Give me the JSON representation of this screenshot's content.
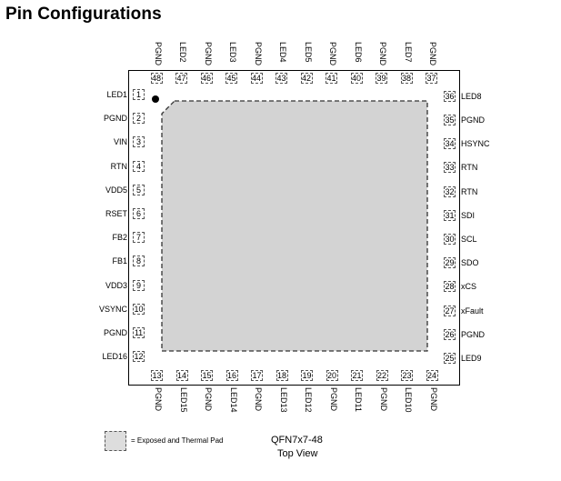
{
  "title": "Pin Configurations",
  "package": "QFN7x7-48",
  "view": "Top View",
  "legend": "= Exposed and Thermal Pad",
  "colors": {
    "pad_fill": "#d3d3d3",
    "outline": "#000000"
  },
  "pins_left": [
    {
      "num": "1",
      "name": "LED1"
    },
    {
      "num": "2",
      "name": "PGND"
    },
    {
      "num": "3",
      "name": "VIN"
    },
    {
      "num": "4",
      "name": "RTN"
    },
    {
      "num": "5",
      "name": "VDD5"
    },
    {
      "num": "6",
      "name": "RSET"
    },
    {
      "num": "7",
      "name": "FB2"
    },
    {
      "num": "8",
      "name": "FB1"
    },
    {
      "num": "9",
      "name": "VDD3"
    },
    {
      "num": "10",
      "name": "VSYNC"
    },
    {
      "num": "11",
      "name": "PGND"
    },
    {
      "num": "12",
      "name": "LED16"
    }
  ],
  "pins_bottom": [
    {
      "num": "13",
      "name": "PGND"
    },
    {
      "num": "14",
      "name": "LED15"
    },
    {
      "num": "15",
      "name": "PGND"
    },
    {
      "num": "16",
      "name": "LED14"
    },
    {
      "num": "17",
      "name": "PGND"
    },
    {
      "num": "18",
      "name": "LED13"
    },
    {
      "num": "19",
      "name": "LED12"
    },
    {
      "num": "20",
      "name": "PGND"
    },
    {
      "num": "21",
      "name": "LED11"
    },
    {
      "num": "22",
      "name": "PGND"
    },
    {
      "num": "23",
      "name": "LED10"
    },
    {
      "num": "24",
      "name": "PGND"
    }
  ],
  "pins_right": [
    {
      "num": "25",
      "name": "LED9"
    },
    {
      "num": "26",
      "name": "PGND"
    },
    {
      "num": "27",
      "name": "xFault"
    },
    {
      "num": "28",
      "name": "xCS"
    },
    {
      "num": "29",
      "name": "SDO"
    },
    {
      "num": "30",
      "name": "SCL"
    },
    {
      "num": "31",
      "name": "SDI"
    },
    {
      "num": "32",
      "name": "RTN"
    },
    {
      "num": "33",
      "name": "RTN"
    },
    {
      "num": "34",
      "name": "HSYNC"
    },
    {
      "num": "35",
      "name": "PGND"
    },
    {
      "num": "36",
      "name": "LED8"
    }
  ],
  "pins_top": [
    {
      "num": "37",
      "name": "PGND"
    },
    {
      "num": "38",
      "name": "LED7"
    },
    {
      "num": "39",
      "name": "PGND"
    },
    {
      "num": "40",
      "name": "LED6"
    },
    {
      "num": "41",
      "name": "PGND"
    },
    {
      "num": "42",
      "name": "LED5"
    },
    {
      "num": "43",
      "name": "LED4"
    },
    {
      "num": "44",
      "name": "PGND"
    },
    {
      "num": "45",
      "name": "LED3"
    },
    {
      "num": "46",
      "name": "PGND"
    },
    {
      "num": "47",
      "name": "LED2"
    },
    {
      "num": "48",
      "name": "PGND"
    }
  ]
}
